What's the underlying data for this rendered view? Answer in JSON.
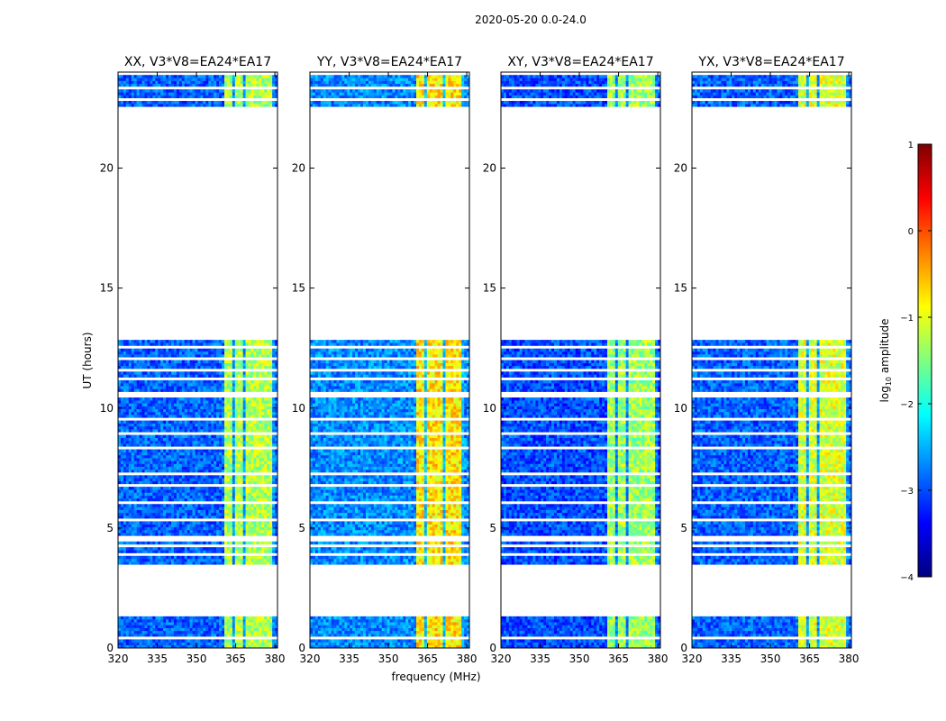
{
  "figure": {
    "suptitle": "2020-05-20 0.0-24.0",
    "xlabel": "frequency (MHz)",
    "ylabel": "UT (hours)"
  },
  "chart_data": {
    "type": "heatmap",
    "xlim": [
      320,
      381
    ],
    "ylim": [
      0,
      24
    ],
    "x_ticks": [
      320,
      335,
      350,
      365,
      380
    ],
    "x_tick_labels": [
      "320",
      "335",
      "350",
      "365",
      "380"
    ],
    "y_ticks": [
      0,
      5,
      10,
      15,
      20
    ],
    "y_tick_labels": [
      "0",
      "5",
      "10",
      "15",
      "20"
    ],
    "data_time_ranges_hours": [
      [
        0.0,
        1.3
      ],
      [
        3.5,
        12.8
      ],
      [
        22.6,
        24.0
      ]
    ],
    "flagged_rows_hours": [
      0.45,
      3.9,
      4.2,
      4.45,
      4.6,
      5.35,
      6.05,
      6.8,
      7.3,
      8.35,
      8.9,
      9.5,
      10.5,
      10.6,
      11.2,
      11.6,
      12.1,
      12.5,
      22.9,
      23.4,
      23.9
    ],
    "panels": [
      {
        "title": "XX, V3*V8=EA24*EA17",
        "band_mhz": [
          360.5,
          379.5
        ],
        "band_level": -1.4,
        "base_level": -2.9
      },
      {
        "title": "YY, V3*V8=EA24*EA17",
        "band_mhz": [
          360.5,
          378.5
        ],
        "band_level": -0.9,
        "base_level": -2.7
      },
      {
        "title": "XY, V3*V8=EA24*EA17",
        "band_mhz": [
          360.5,
          379.5
        ],
        "band_level": -1.5,
        "base_level": -3.0
      },
      {
        "title": "YX, V3*V8=EA24*EA17",
        "band_mhz": [
          360.5,
          379.5
        ],
        "band_level": -1.2,
        "base_level": -2.9
      }
    ],
    "colorbar": {
      "label": "log",
      "label_sub": "10",
      "label_rest": " amplitude",
      "vmin": -4,
      "vmax": 1,
      "ticks": [
        1,
        0,
        -1,
        -2,
        -3,
        -4
      ],
      "tick_labels": [
        "1",
        "0",
        "−1",
        "−2",
        "−3",
        "−4"
      ],
      "colormap": [
        "#00007f",
        "#0000ff",
        "#007fff",
        "#00ffff",
        "#7fff7f",
        "#ffff00",
        "#ff7f00",
        "#ff0000",
        "#7f0000"
      ]
    }
  }
}
